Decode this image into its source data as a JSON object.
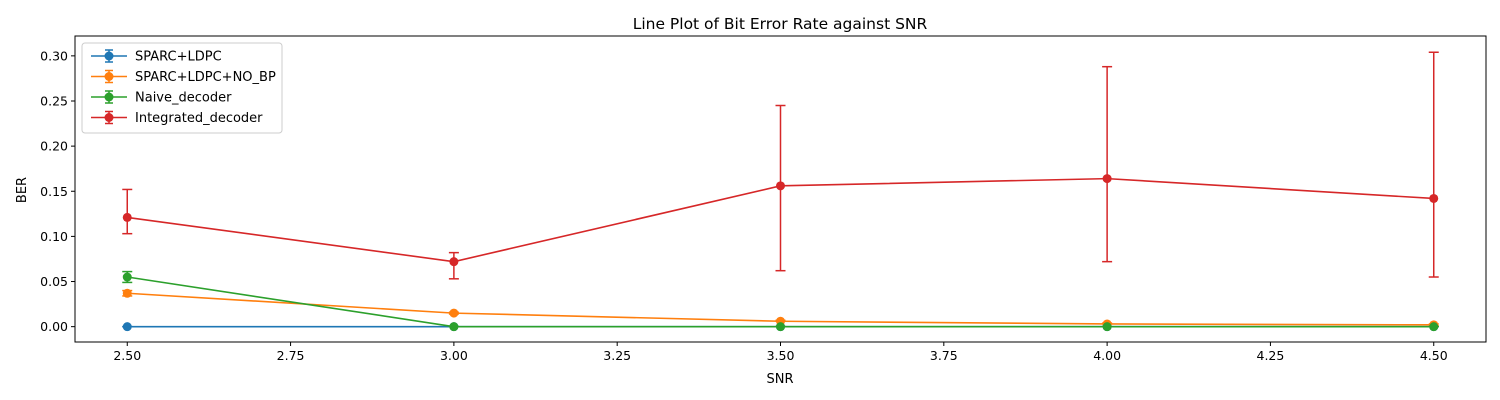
{
  "chart_data": {
    "type": "line",
    "title": "Line Plot of Bit Error Rate against SNR",
    "xlabel": "SNR",
    "ylabel": "BER",
    "xlim": [
      2.42,
      4.58
    ],
    "ylim": [
      -0.017,
      0.322
    ],
    "xticks": [
      "2.50",
      "2.75",
      "3.00",
      "3.25",
      "3.50",
      "3.75",
      "4.00",
      "4.25",
      "4.50"
    ],
    "yticks": [
      "0.00",
      "0.05",
      "0.10",
      "0.15",
      "0.20",
      "0.25",
      "0.30"
    ],
    "grid": false,
    "legend_position": "top-left",
    "x": [
      2.5,
      3.0,
      3.5,
      4.0,
      4.5
    ],
    "series": [
      {
        "name": "SPARC+LDPC",
        "color": "#1f77b4",
        "values": [
          0.0,
          0.0,
          0.0,
          0.0,
          0.0
        ],
        "err_low": [
          0.0,
          0.0,
          0.0,
          0.0,
          0.0
        ],
        "err_high": [
          0.0,
          0.0,
          0.0,
          0.0,
          0.0
        ]
      },
      {
        "name": "SPARC+LDPC+NO_BP",
        "color": "#ff7f0e",
        "values": [
          0.037,
          0.015,
          0.006,
          0.003,
          0.002
        ],
        "err_low": [
          0.034,
          0.014,
          0.006,
          0.003,
          0.001
        ],
        "err_high": [
          0.04,
          0.016,
          0.007,
          0.004,
          0.003
        ]
      },
      {
        "name": "Naive_decoder",
        "color": "#2ca02c",
        "values": [
          0.055,
          0.0,
          0.0,
          0.0,
          0.0
        ],
        "err_low": [
          0.049,
          0.0,
          0.0,
          0.0,
          0.0
        ],
        "err_high": [
          0.061,
          0.0,
          0.0,
          0.0,
          0.0
        ]
      },
      {
        "name": "Integrated_decoder",
        "color": "#d62728",
        "values": [
          0.121,
          0.072,
          0.156,
          0.164,
          0.142
        ],
        "err_low": [
          0.103,
          0.053,
          0.062,
          0.072,
          0.055
        ],
        "err_high": [
          0.152,
          0.082,
          0.245,
          0.288,
          0.304
        ]
      }
    ]
  }
}
